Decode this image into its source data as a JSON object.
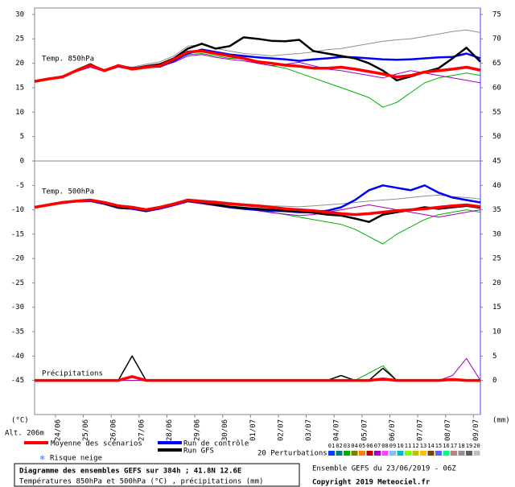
{
  "chart_data": [
    {
      "type": "line",
      "label": "Temp. 850hPa",
      "x": [
        0,
        12,
        24,
        36,
        48,
        60,
        72,
        84,
        96,
        108,
        120,
        132,
        144,
        156,
        168,
        180,
        192,
        204,
        216,
        228,
        240,
        252,
        264,
        276,
        288,
        300,
        312,
        324,
        336,
        348,
        360,
        372,
        384
      ],
      "xlim": [
        0,
        384
      ],
      "xticks": [
        {
          "value": 18,
          "label": "24/06"
        },
        {
          "value": 42,
          "label": "25/06"
        },
        {
          "value": 66,
          "label": "26/06"
        },
        {
          "value": 90,
          "label": "27/06"
        },
        {
          "value": 114,
          "label": "28/06"
        },
        {
          "value": 138,
          "label": "29/06"
        },
        {
          "value": 162,
          "label": "30/06"
        },
        {
          "value": 186,
          "label": "01/07"
        },
        {
          "value": 210,
          "label": "02/07"
        },
        {
          "value": 234,
          "label": "03/07"
        },
        {
          "value": 258,
          "label": "04/07"
        },
        {
          "value": 282,
          "label": "05/07"
        },
        {
          "value": 306,
          "label": "06/07"
        },
        {
          "value": 330,
          "label": "07/07"
        },
        {
          "value": 354,
          "label": "08/07"
        },
        {
          "value": 378,
          "label": "09/07"
        }
      ],
      "ylim": [
        0,
        31.3
      ],
      "yticks": [
        30,
        25,
        20,
        15,
        10,
        5
      ],
      "y2lim": [
        45,
        76.3
      ],
      "y2ticks": [
        75,
        70,
        65,
        60,
        55,
        50
      ],
      "series": [
        {
          "name": "03",
          "color": "#00b000",
          "line_width": 1,
          "values": [
            16.3,
            16.8,
            17.2,
            18.4,
            19.4,
            18.6,
            19.3,
            19,
            19.5,
            19.8,
            20.5,
            21.8,
            22,
            21.5,
            21,
            21,
            20,
            19.5,
            19,
            18,
            17,
            16,
            15,
            14,
            13,
            11,
            12,
            14,
            16,
            17,
            17.5,
            18,
            17.5
          ]
        },
        {
          "name": "18",
          "color": "#909090",
          "line_width": 1,
          "values": [
            16.3,
            16.8,
            17.2,
            18.5,
            19.5,
            18.7,
            19.6,
            19.2,
            19.8,
            20.3,
            21.5,
            23.5,
            23.8,
            23,
            22.5,
            22,
            21.8,
            21.5,
            21.8,
            22,
            22.3,
            22.8,
            23,
            23.5,
            24,
            24.5,
            24.8,
            25,
            25.5,
            26,
            26.5,
            26.8,
            26.3
          ]
        },
        {
          "name": "07",
          "color": "#a000c0",
          "line_width": 1,
          "values": [
            16.3,
            16.8,
            17.2,
            18.3,
            19.2,
            18.3,
            19.2,
            18.7,
            19,
            19.3,
            20.2,
            21.5,
            21.8,
            21.2,
            20.8,
            20.5,
            20,
            19.5,
            19.8,
            20.2,
            19.5,
            18.8,
            18.5,
            18,
            17.5,
            17,
            17.8,
            18.5,
            18,
            17.5,
            17,
            16.5,
            16
          ]
        },
        {
          "name": "Run de contrôle",
          "color": "#0000ff",
          "line_width": 2.5,
          "values": [
            16.3,
            16.8,
            17.3,
            18.5,
            19.7,
            18.5,
            19.4,
            19,
            19.2,
            19.3,
            20.5,
            22,
            22.8,
            22.3,
            21.8,
            21.5,
            21.2,
            21,
            20.8,
            20.5,
            20.8,
            21,
            21.3,
            21.2,
            21,
            20.8,
            20.7,
            20.8,
            21,
            21.2,
            21.3,
            22,
            21
          ]
        },
        {
          "name": "Run GFS",
          "color": "#000000",
          "line_width": 2.5,
          "values": [
            16.3,
            16.8,
            17.2,
            18.6,
            19.8,
            18.4,
            19.6,
            18.9,
            19.4,
            19.8,
            21,
            23,
            24,
            23,
            23.5,
            25.3,
            25,
            24.6,
            24.5,
            24.8,
            22.5,
            22,
            21.5,
            21,
            20,
            18.5,
            16.5,
            17.3,
            18.2,
            19,
            21,
            23.2,
            20.3
          ]
        },
        {
          "name": "Moyenne des scénarios",
          "color": "#ff0000",
          "line_width": 3.5,
          "values": [
            16.3,
            16.8,
            17.2,
            18.5,
            19.6,
            18.5,
            19.5,
            18.8,
            19.2,
            19.5,
            20.8,
            22.3,
            22.5,
            22,
            21.5,
            21,
            20.3,
            20,
            19.6,
            19.4,
            19,
            19,
            19.2,
            18.8,
            18.3,
            17.8,
            17.2,
            17.5,
            18.2,
            18.5,
            18.8,
            19.2,
            18.6
          ]
        }
      ]
    },
    {
      "type": "line",
      "label": "Temp. 500hPa",
      "label2": "Précipitations",
      "x": [
        0,
        12,
        24,
        36,
        48,
        60,
        72,
        84,
        96,
        108,
        120,
        132,
        144,
        156,
        168,
        180,
        192,
        204,
        216,
        228,
        240,
        252,
        264,
        276,
        288,
        300,
        312,
        324,
        336,
        348,
        360,
        372,
        384
      ],
      "xlim": [
        0,
        384
      ],
      "ylim": [
        -52,
        0
      ],
      "yticks": [
        0,
        -5,
        -10,
        -15,
        -20,
        -25,
        -30,
        -35,
        -40,
        -45
      ],
      "y2lim": [
        -7,
        45
      ],
      "y2ticks": [
        45,
        40,
        35,
        30,
        25,
        20,
        15,
        10,
        5,
        0
      ],
      "series": [
        {
          "name": "03",
          "color": "#00b000",
          "line_width": 1,
          "values": [
            -9.5,
            -9,
            -8.5,
            -8.3,
            -8.2,
            -8.6,
            -9.3,
            -9.5,
            -10,
            -9.6,
            -8.9,
            -8.1,
            -8.4,
            -8.8,
            -9.2,
            -9.5,
            -10,
            -10.5,
            -11,
            -11.5,
            -12,
            -12.5,
            -13,
            -14,
            -15.5,
            -17,
            -15,
            -13.5,
            -12,
            -11,
            -10.5,
            -10,
            -10.5
          ]
        },
        {
          "name": "18",
          "color": "#909090",
          "line_width": 1,
          "values": [
            -9.5,
            -9,
            -8.5,
            -8.1,
            -7.9,
            -8.4,
            -9,
            -9.3,
            -9.8,
            -9.3,
            -8.6,
            -7.8,
            -8,
            -8.2,
            -8.5,
            -8.8,
            -9,
            -9.2,
            -9.3,
            -9.4,
            -9.2,
            -9,
            -8.8,
            -8.5,
            -8.2,
            -8,
            -7.8,
            -7.5,
            -7.2,
            -7,
            -7.3,
            -7.5,
            -7.8
          ]
        },
        {
          "name": "07",
          "color": "#a000c0",
          "line_width": 1,
          "values": [
            -9.5,
            -9.1,
            -8.7,
            -8.4,
            -8.3,
            -8.8,
            -9.6,
            -9.8,
            -10.4,
            -9.9,
            -9.2,
            -8.4,
            -8.8,
            -9.2,
            -9.6,
            -9.9,
            -10.2,
            -10.6,
            -10.9,
            -11.2,
            -11,
            -10.5,
            -10,
            -9.5,
            -9,
            -9.5,
            -10,
            -10.5,
            -11,
            -11.5,
            -11,
            -10.5,
            -10
          ]
        },
        {
          "name": "Run de contrôle",
          "color": "#0000ff",
          "line_width": 2.5,
          "values": [
            -9.5,
            -9,
            -8.6,
            -8.3,
            -8.2,
            -8.8,
            -9.6,
            -9.8,
            -10.3,
            -9.7,
            -9,
            -8.2,
            -8.5,
            -9,
            -9.5,
            -9.8,
            -10,
            -10.2,
            -10.3,
            -10.5,
            -10.5,
            -10.2,
            -9.5,
            -8,
            -6,
            -5,
            -5.5,
            -6,
            -5,
            -6.5,
            -7.5,
            -8,
            -8.5
          ]
        },
        {
          "name": "Run GFS",
          "color": "#000000",
          "line_width": 2.5,
          "values": [
            -9.5,
            -9,
            -8.5,
            -8.2,
            -8,
            -8.7,
            -9.5,
            -9.6,
            -10.2,
            -9.6,
            -8.8,
            -8.1,
            -8.5,
            -9,
            -9.4,
            -9.6,
            -9.8,
            -10,
            -10.2,
            -10.4,
            -10.6,
            -11,
            -11.2,
            -11.8,
            -12.5,
            -11,
            -10.5,
            -10,
            -9.5,
            -9.8,
            -9.5,
            -9.2,
            -9.6
          ]
        },
        {
          "name": "Moyenne des scénarios",
          "color": "#ff0000",
          "line_width": 3.5,
          "values": [
            -9.5,
            -9,
            -8.5,
            -8.2,
            -8,
            -8.5,
            -9.2,
            -9.5,
            -10,
            -9.5,
            -8.8,
            -8,
            -8.3,
            -8.5,
            -8.8,
            -9,
            -9.2,
            -9.5,
            -9.8,
            -10,
            -10.2,
            -10.5,
            -10.8,
            -11,
            -10.8,
            -10.5,
            -10.2,
            -10,
            -9.8,
            -9.5,
            -9.2,
            -9,
            -9.4
          ]
        },
        {
          "name": "03",
          "color": "#00b000",
          "line_width": 1,
          "axis": "y2",
          "values": [
            0,
            0,
            0,
            0,
            0,
            0,
            0,
            0,
            0,
            0,
            0,
            0,
            0,
            0,
            0,
            0,
            0,
            0,
            0,
            0,
            0,
            0,
            0,
            0,
            1.5,
            3,
            0,
            0,
            0,
            0,
            0,
            0,
            0
          ]
        },
        {
          "name": "07",
          "color": "#a000c0",
          "line_width": 1,
          "axis": "y2",
          "values": [
            0,
            0,
            0,
            0,
            0,
            0,
            0,
            0,
            0,
            0,
            0,
            0,
            0,
            0,
            0,
            0,
            0,
            0,
            0,
            0,
            0,
            0,
            0,
            0,
            0,
            0,
            0,
            0,
            0,
            0,
            1,
            4.5,
            0
          ]
        },
        {
          "name": "Run GFS",
          "color": "#000000",
          "line_width": 1.5,
          "axis": "y2",
          "values": [
            0,
            0,
            0,
            0,
            0,
            0,
            0,
            5,
            0,
            0,
            0,
            0,
            0,
            0,
            0,
            0,
            0,
            0,
            0,
            0,
            0,
            0,
            1,
            0,
            0,
            2.5,
            0,
            0,
            0,
            0,
            0,
            0,
            0
          ]
        },
        {
          "name": "Moyenne des scénarios",
          "color": "#ff0000",
          "line_width": 3.5,
          "axis": "y2",
          "values": [
            0,
            0,
            0,
            0,
            0,
            0,
            0,
            0.8,
            0,
            0,
            0,
            0,
            0,
            0,
            0,
            0,
            0,
            0,
            0,
            0,
            0,
            0,
            0,
            0,
            0,
            0.3,
            0,
            0,
            0,
            0,
            0.2,
            0,
            0
          ]
        }
      ]
    }
  ],
  "axis": {
    "left_unit": "(°C)",
    "right_unit": "(mm)",
    "altitude": "Alt. 206m"
  },
  "legend": {
    "snow": "Risque neige",
    "perturbations_label": "20 Perturbations",
    "perturbations": [
      {
        "label": "01",
        "color": "#0040ff"
      },
      {
        "label": "02",
        "color": "#008080"
      },
      {
        "label": "03",
        "color": "#00b000"
      },
      {
        "label": "04",
        "color": "#808000"
      },
      {
        "label": "05",
        "color": "#ff8000"
      },
      {
        "label": "06",
        "color": "#c00000"
      },
      {
        "label": "07",
        "color": "#a000c0"
      },
      {
        "label": "08",
        "color": "#ff40ff"
      },
      {
        "label": "09",
        "color": "#80c0ff"
      },
      {
        "label": "10",
        "color": "#00c0c0"
      },
      {
        "label": "11",
        "color": "#80ff00"
      },
      {
        "label": "12",
        "color": "#c0c000"
      },
      {
        "label": "13",
        "color": "#ffc000"
      },
      {
        "label": "14",
        "color": "#804000"
      },
      {
        "label": "15",
        "color": "#6060ff"
      },
      {
        "label": "16",
        "color": "#00ff80"
      },
      {
        "label": "17",
        "color": "#c08080"
      },
      {
        "label": "18",
        "color": "#909090"
      },
      {
        "label": "19",
        "color": "#606060"
      },
      {
        "label": "20",
        "color": "#c0c0c0"
      }
    ]
  },
  "footer": {
    "title": "Diagramme des ensembles GEFS sur 384h ; 41.8N 12.6E",
    "subtitle": "Températures 850hPa et 500hPa (°C) , précipitations (mm)",
    "run": "Ensemble GEFS du 23/06/2019 - 06Z",
    "copyright": "Copyright 2019 Meteociel.fr"
  }
}
